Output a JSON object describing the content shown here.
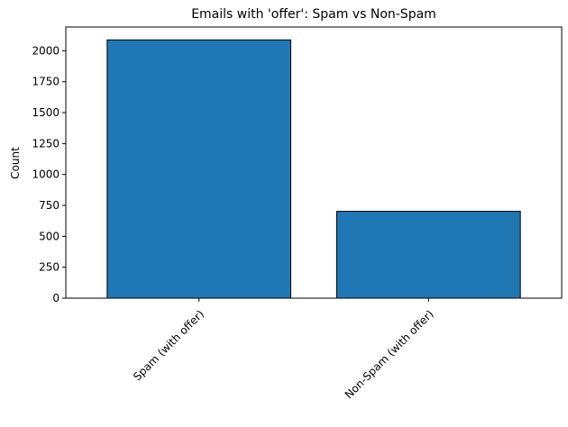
{
  "chart_data": {
    "type": "bar",
    "title": "Emails with 'offer': Spam vs Non-Spam",
    "xlabel": "",
    "ylabel": "Count",
    "categories": [
      "Spam (with offer)",
      "Non-Spam (with offer)"
    ],
    "values": [
      2088,
      702
    ],
    "ylim": [
      0,
      2192
    ],
    "yticks": [
      0,
      250,
      500,
      750,
      1000,
      1250,
      1500,
      1750,
      2000
    ],
    "bar_color": "#1f77b4",
    "bar_edge_color": "#000000",
    "grid": false,
    "legend": "none",
    "xtick_rotation": 45
  }
}
